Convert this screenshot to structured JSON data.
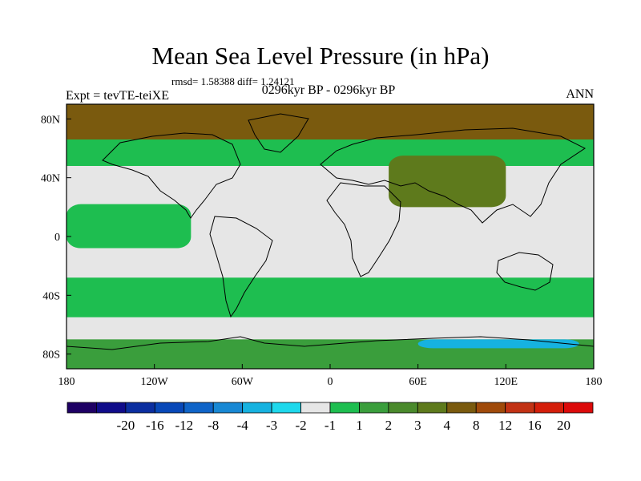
{
  "header": {
    "title": "Mean Sea Level Pressure (in hPa)",
    "stats": "rmsd= 1.58388 diff= 1.24121",
    "subtitle": "0296kyr BP - 0296kyr BP",
    "left_label": "Expt = tevTE-teiXE",
    "right_label": "ANN"
  },
  "chart_data": {
    "type": "heatmap",
    "title": "Mean Sea Level Pressure (in hPa)",
    "projection": "cylindrical equidistant",
    "x_range": [
      -180,
      180
    ],
    "y_range": [
      -90,
      90
    ],
    "x_ticks": [
      {
        "value": -180,
        "label": "180"
      },
      {
        "value": -120,
        "label": "120W"
      },
      {
        "value": -60,
        "label": "60W"
      },
      {
        "value": 0,
        "label": "0"
      },
      {
        "value": 60,
        "label": "60E"
      },
      {
        "value": 120,
        "label": "120E"
      },
      {
        "value": 180,
        "label": "180"
      }
    ],
    "y_ticks": [
      {
        "value": 80,
        "label": "80N"
      },
      {
        "value": 40,
        "label": "40N"
      },
      {
        "value": 0,
        "label": "0"
      },
      {
        "value": -40,
        "label": "40S"
      },
      {
        "value": -80,
        "label": "80S"
      }
    ],
    "colorbar": {
      "colors": [
        "#1e0064",
        "#100c8a",
        "#0b2ea0",
        "#0848b8",
        "#0f64c8",
        "#1888d4",
        "#16b2e0",
        "#1ed8ec",
        "#e6e6e6",
        "#1ebe50",
        "#3a9e3c",
        "#4a8a2c",
        "#5e7a1c",
        "#7a5a0e",
        "#a04a0a",
        "#c23214",
        "#d41e0a",
        "#dc0a0a"
      ],
      "labels": [
        "-20",
        "-16",
        "-12",
        "-8",
        "-4",
        "-3",
        "-2",
        "-1",
        "1",
        "2",
        "3",
        "4",
        "8",
        "12",
        "16",
        "20"
      ]
    },
    "regions": [
      {
        "name": "arctic",
        "level": 4,
        "lon": [
          -180,
          180
        ],
        "lat": [
          62,
          90
        ],
        "color": "#7a5a0e"
      },
      {
        "name": "subpolar-north-band",
        "level": 2,
        "lon": [
          -180,
          180
        ],
        "lat": [
          48,
          66
        ],
        "color": "#1ebe50"
      },
      {
        "name": "north-pacific-neutral",
        "level": 1,
        "lon": [
          -175,
          -100
        ],
        "lat": [
          30,
          48
        ],
        "color": "#e6e6e6"
      },
      {
        "name": "north-atlantic-neutral",
        "level": 1,
        "lon": [
          -60,
          -10
        ],
        "lat": [
          20,
          48
        ],
        "color": "#e6e6e6"
      },
      {
        "name": "asia-high",
        "level": 4,
        "lon": [
          40,
          120
        ],
        "lat": [
          20,
          55
        ],
        "color": "#5e7a1c"
      },
      {
        "name": "equatorial-pacific-band",
        "level": 2,
        "lon": [
          -180,
          -95
        ],
        "lat": [
          -8,
          22
        ],
        "color": "#1ebe50"
      },
      {
        "name": "south-pacific-neutral",
        "level": 1,
        "lon": [
          -180,
          -95
        ],
        "lat": [
          -28,
          -8
        ],
        "color": "#e6e6e6"
      },
      {
        "name": "southern-midlat-band",
        "level": 2,
        "lon": [
          -180,
          180
        ],
        "lat": [
          -55,
          -28
        ],
        "color": "#1ebe50"
      },
      {
        "name": "southern-ocean-neutral",
        "level": 1,
        "lon": [
          -180,
          180
        ],
        "lat": [
          -70,
          -55
        ],
        "color": "#e6e6e6"
      },
      {
        "name": "antarctic-coast",
        "level": 3,
        "lon": [
          -180,
          180
        ],
        "lat": [
          -90,
          -70
        ],
        "color": "#3a9e3c"
      },
      {
        "name": "antarctic-negative-patches",
        "level": -2,
        "lon": [
          60,
          170
        ],
        "lat": [
          -76,
          -70
        ],
        "color": "#16b2e0"
      }
    ]
  }
}
